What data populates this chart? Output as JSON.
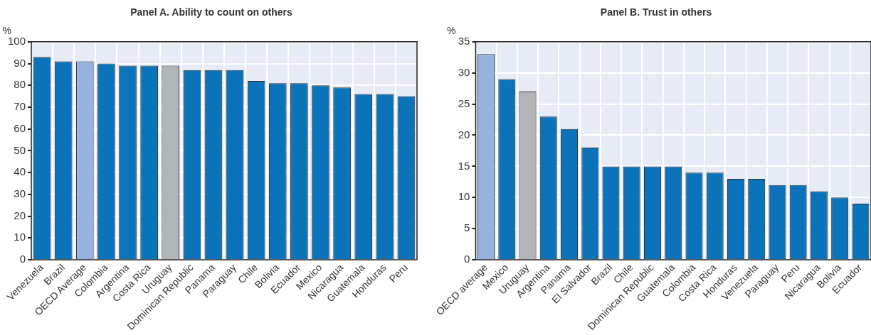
{
  "chart_data": [
    {
      "type": "bar",
      "title": "Panel A. Ability to count on others",
      "ylabel": "%",
      "categories": [
        "Venezuela",
        "Brazil",
        "OECD Average",
        "Colombia",
        "Argentina",
        "Costa Rica",
        "Uruguay",
        "Dominican Republic",
        "Panama",
        "Paraguay",
        "Chile",
        "Bolivia",
        "Ecuador",
        "Mexico",
        "Nicaragua",
        "Guatemala",
        "Honduras",
        "Peru"
      ],
      "values": [
        93,
        91,
        91,
        90,
        89,
        89,
        89,
        87,
        87,
        87,
        82,
        81,
        81,
        80,
        79,
        76,
        76,
        75
      ],
      "colors": [
        "#0a73b9",
        "#0a73b9",
        "#95b3de",
        "#0a73b9",
        "#0a73b9",
        "#0a73b9",
        "#b3b4b8",
        "#0a73b9",
        "#0a73b9",
        "#0a73b9",
        "#0a73b9",
        "#0a73b9",
        "#0a73b9",
        "#0a73b9",
        "#0a73b9",
        "#0a73b9",
        "#0a73b9",
        "#0a73b9"
      ],
      "ylim": [
        0,
        100
      ],
      "yticks": [
        0,
        10,
        20,
        30,
        40,
        50,
        60,
        70,
        80,
        90,
        100
      ],
      "grid": true
    },
    {
      "type": "bar",
      "title": "Panel B. Trust in others",
      "ylabel": "%",
      "categories": [
        "OECD average",
        "Mexico",
        "Uruguay",
        "Argentina",
        "Panama",
        "El Salvador",
        "Brazil",
        "Chile",
        "Dominican Republic",
        "Guatemala",
        "Colombia",
        "Costa Rica",
        "Honduras",
        "Venezuela",
        "Paraguay",
        "Peru",
        "Nicaragua",
        "Bolivia",
        "Ecuador"
      ],
      "values": [
        33,
        29,
        27,
        23,
        21,
        18,
        15,
        15,
        15,
        15,
        14,
        14,
        13,
        13,
        12,
        12,
        11,
        10,
        9
      ],
      "colors": [
        "#95b3de",
        "#0a73b9",
        "#b3b4b8",
        "#0a73b9",
        "#0a73b9",
        "#0a73b9",
        "#0a73b9",
        "#0a73b9",
        "#0a73b9",
        "#0a73b9",
        "#0a73b9",
        "#0a73b9",
        "#0a73b9",
        "#0a73b9",
        "#0a73b9",
        "#0a73b9",
        "#0a73b9",
        "#0a73b9",
        "#0a73b9"
      ],
      "ylim": [
        0,
        35
      ],
      "yticks": [
        0,
        5,
        10,
        15,
        20,
        25,
        30,
        35
      ],
      "grid": true
    }
  ]
}
